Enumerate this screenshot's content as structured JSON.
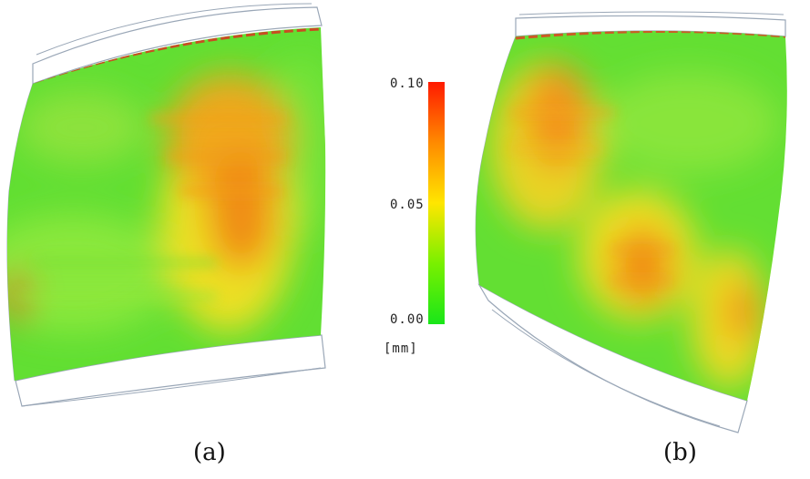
{
  "panels": [
    {
      "label": "(a)"
    },
    {
      "label": "(b)"
    }
  ],
  "colorbar": {
    "ticks": [
      "0.10",
      "0.05",
      "0.00"
    ],
    "unit": "[mm]",
    "colors": [
      "#ff1a00",
      "#ff8a00",
      "#ffe600",
      "#79f000",
      "#19e619"
    ]
  },
  "colors": {
    "surface_base": "#5fe23a",
    "hot_region": "#f08a1a",
    "warm_region": "#f4d719",
    "outline": "#8b9aad"
  }
}
